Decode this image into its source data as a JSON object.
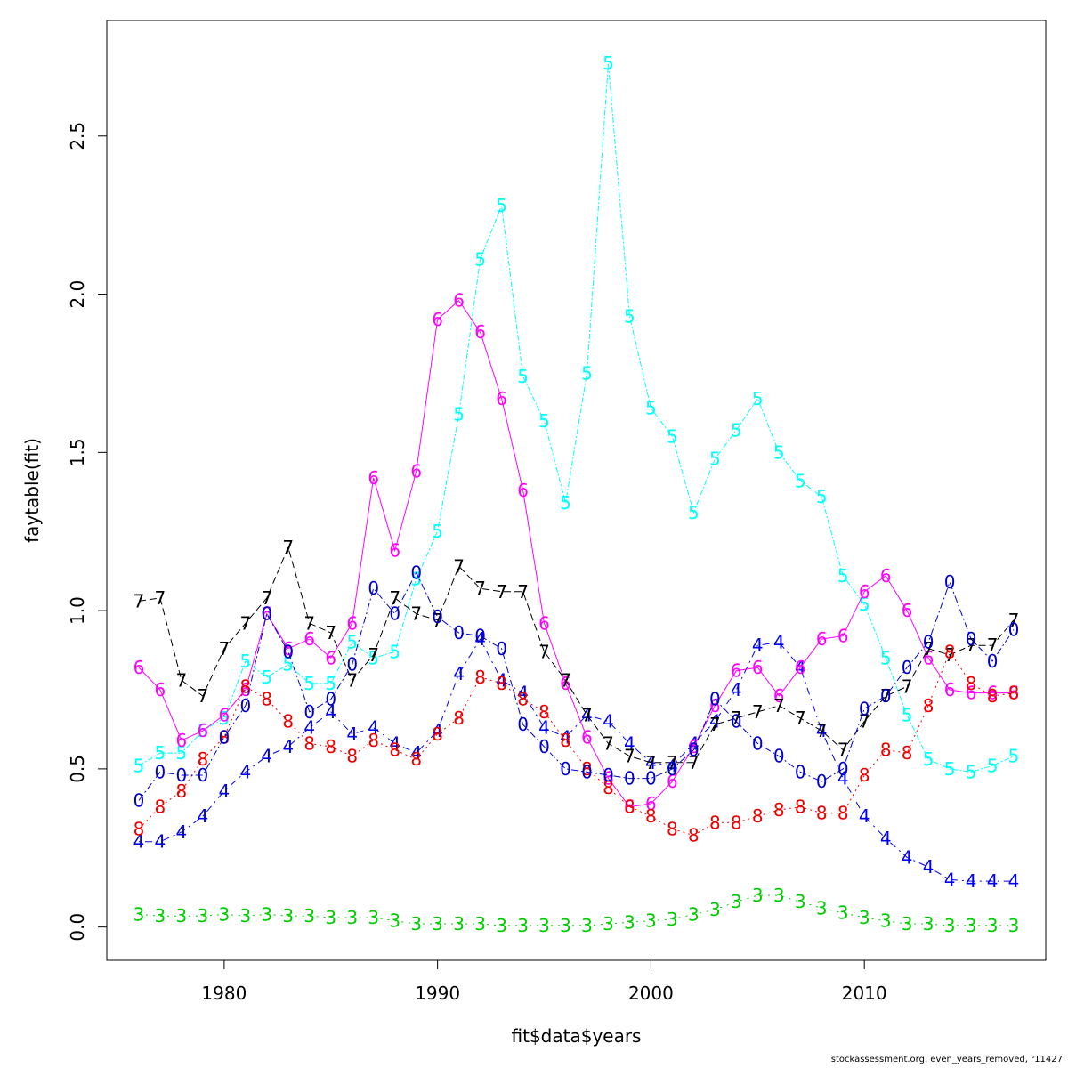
{
  "chart_data": {
    "type": "line",
    "title": "",
    "xlabel": "fit$data$years",
    "ylabel": "faytable(fit)",
    "xlim": [
      1974.5,
      2018.5
    ],
    "ylim": [
      -0.105,
      2.865
    ],
    "xticks": [
      1980,
      1990,
      2000,
      2010
    ],
    "yticks": [
      0.0,
      0.5,
      1.0,
      1.5,
      2.0,
      2.5
    ],
    "ytick_labels": [
      "0.0",
      "0.5",
      "1.0",
      "1.5",
      "2.0",
      "2.5"
    ],
    "legend": "none",
    "grid": false,
    "x": [
      1976,
      1977,
      1978,
      1979,
      1980,
      1981,
      1982,
      1983,
      1984,
      1985,
      1986,
      1987,
      1988,
      1989,
      1990,
      1991,
      1992,
      1993,
      1994,
      1995,
      1996,
      1997,
      1998,
      1999,
      2000,
      2001,
      2002,
      2003,
      2004,
      2005,
      2006,
      2007,
      2008,
      2009,
      2010,
      2011,
      2012,
      2013,
      2014,
      2015,
      2016,
      2017
    ],
    "series": [
      {
        "label": "3",
        "color": "#00cd00",
        "dash": "2,6",
        "values": [
          0.04,
          0.035,
          0.035,
          0.035,
          0.04,
          0.035,
          0.04,
          0.035,
          0.035,
          0.03,
          0.03,
          0.03,
          0.02,
          0.01,
          0.01,
          0.01,
          0.01,
          0.005,
          0.005,
          0.005,
          0.005,
          0.005,
          0.01,
          0.015,
          0.02,
          0.025,
          0.04,
          0.055,
          0.08,
          0.1,
          0.1,
          0.08,
          0.06,
          0.045,
          0.03,
          0.02,
          0.01,
          0.01,
          0.005,
          0.005,
          0.005,
          0.005
        ]
      },
      {
        "label": "4",
        "color": "#0000ee",
        "dash": "2,5,8,5",
        "values": [
          0.27,
          0.27,
          0.3,
          0.35,
          0.43,
          0.49,
          0.54,
          0.57,
          0.63,
          0.68,
          0.61,
          0.63,
          0.58,
          0.55,
          0.62,
          0.8,
          0.91,
          0.78,
          0.74,
          0.63,
          0.6,
          0.67,
          0.65,
          0.58,
          0.52,
          0.51,
          0.58,
          0.65,
          0.75,
          0.89,
          0.9,
          0.82,
          0.62,
          0.47,
          0.35,
          0.28,
          0.22,
          0.19,
          0.15,
          0.145,
          0.145,
          0.145
        ]
      },
      {
        "label": "5",
        "color": "#00ffff",
        "dash": "6,2,2,2",
        "values": [
          0.51,
          0.55,
          0.55,
          0.62,
          0.66,
          0.84,
          0.79,
          0.83,
          0.77,
          0.77,
          0.9,
          0.85,
          0.87,
          1.1,
          1.25,
          1.62,
          2.11,
          2.28,
          1.74,
          1.6,
          1.34,
          1.75,
          2.73,
          1.93,
          1.64,
          1.55,
          1.31,
          1.48,
          1.57,
          1.67,
          1.5,
          1.41,
          1.36,
          1.11,
          1.02,
          0.85,
          0.67,
          0.53,
          0.5,
          0.49,
          0.51,
          0.54
        ]
      },
      {
        "label": "6",
        "color": "#ff00ff",
        "dash": "none",
        "values": [
          0.82,
          0.75,
          0.59,
          0.62,
          0.67,
          0.75,
          0.99,
          0.88,
          0.91,
          0.85,
          0.96,
          1.42,
          1.19,
          1.44,
          1.92,
          1.98,
          1.88,
          1.67,
          1.38,
          0.96,
          0.77,
          0.6,
          0.47,
          0.38,
          0.39,
          0.46,
          0.57,
          0.7,
          0.81,
          0.82,
          0.73,
          0.82,
          0.91,
          0.92,
          1.06,
          1.11,
          1.0,
          0.85,
          0.75,
          0.74,
          0.74,
          0.74
        ]
      },
      {
        "label": "7",
        "color": "#000000",
        "dash": "8,4",
        "values": [
          1.03,
          1.04,
          0.78,
          0.73,
          0.88,
          0.96,
          1.04,
          1.2,
          0.96,
          0.93,
          0.78,
          0.86,
          1.04,
          0.99,
          0.97,
          1.14,
          1.07,
          1.06,
          1.06,
          0.87,
          0.78,
          0.67,
          0.58,
          0.54,
          0.52,
          0.52,
          0.52,
          0.64,
          0.66,
          0.68,
          0.7,
          0.66,
          0.62,
          0.56,
          0.65,
          0.73,
          0.76,
          0.88,
          0.86,
          0.89,
          0.89,
          0.97
        ]
      },
      {
        "label": "8",
        "color": "#ee0000",
        "dash": "2,4",
        "values": [
          0.31,
          0.38,
          0.43,
          0.53,
          0.6,
          0.76,
          0.72,
          0.65,
          0.58,
          0.57,
          0.54,
          0.59,
          0.56,
          0.53,
          0.61,
          0.66,
          0.79,
          0.77,
          0.72,
          0.68,
          0.59,
          0.5,
          0.44,
          0.38,
          0.35,
          0.31,
          0.29,
          0.33,
          0.33,
          0.35,
          0.37,
          0.38,
          0.36,
          0.36,
          0.48,
          0.56,
          0.55,
          0.7,
          0.87,
          0.77,
          0.73,
          0.74
        ]
      },
      {
        "label": "0",
        "color": "#0000cd",
        "dash": "8,3,2,3",
        "values": [
          0.4,
          0.49,
          0.48,
          0.48,
          0.6,
          0.7,
          0.99,
          0.87,
          0.68,
          0.72,
          0.83,
          1.07,
          0.99,
          1.12,
          0.98,
          0.93,
          0.92,
          0.88,
          0.64,
          0.57,
          0.5,
          0.49,
          0.48,
          0.47,
          0.47,
          0.5,
          0.56,
          0.72,
          0.65,
          0.58,
          0.54,
          0.49,
          0.46,
          0.5,
          0.69,
          0.73,
          0.82,
          0.9,
          1.09,
          0.91,
          0.84,
          0.94
        ]
      }
    ]
  },
  "footer": {
    "credit": "stockassessment.org, even_years_removed, r11427"
  }
}
